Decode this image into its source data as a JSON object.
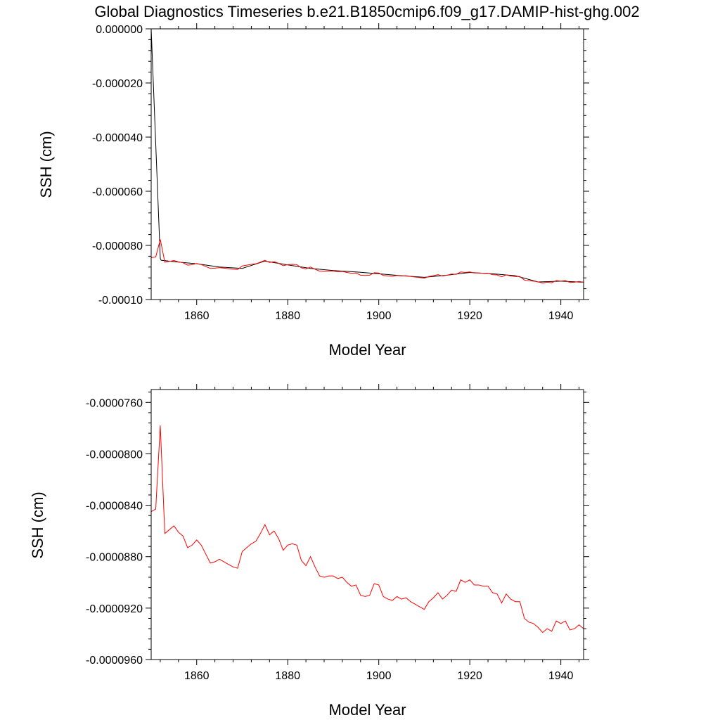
{
  "title": "Global Diagnostics Timeseries b.e21.B1850cmip6.f09_g17.DAMIP-hist-ghg.002",
  "colors": {
    "background": "#ffffff",
    "axes": "#000000",
    "raw_series": "#000000",
    "annual_series": "#ff0000"
  },
  "chart_data": [
    {
      "type": "line",
      "xlabel": "Model Year",
      "ylabel": "SSH (cm)",
      "xlim": [
        1850,
        1945
      ],
      "ylim": [
        -0.0001,
        0.0
      ],
      "xticks": [
        1860,
        1880,
        1900,
        1920,
        1940
      ],
      "xtick_labels": [
        "1860",
        "1880",
        "1900",
        "1920",
        "1940"
      ],
      "yticks": [
        0.0,
        -2e-05,
        -4e-05,
        -6e-05,
        -8e-05,
        -0.0001
      ],
      "ytick_labels": [
        "0.000000",
        "-0.000020",
        "-0.000040",
        "-0.000060",
        "-0.000080",
        "-0.00010"
      ],
      "grid": false,
      "series": [
        {
          "color": "#000000",
          "x": [
            1850.0,
            1852.0,
            1852.2,
            1855,
            1860,
            1865,
            1870,
            1875,
            1880,
            1885,
            1890,
            1895,
            1900,
            1905,
            1910,
            1915,
            1920,
            1925,
            1930,
            1935,
            1940,
            1945
          ],
          "values": [
            -0.0,
            -8.48e-05,
            -8.55e-05,
            -8.6e-05,
            -8.68e-05,
            -8.8e-05,
            -8.85e-05,
            -8.58e-05,
            -8.72e-05,
            -8.85e-05,
            -8.93e-05,
            -8.98e-05,
            -9.05e-05,
            -9.12e-05,
            -9.18e-05,
            -9.1e-05,
            -9e-05,
            -9.05e-05,
            -9.12e-05,
            -9.35e-05,
            -9.32e-05,
            -9.36e-05
          ]
        },
        {
          "color": "#ff0000",
          "x": [
            1850,
            1851,
            1852,
            1853,
            1854,
            1855,
            1856,
            1857,
            1858,
            1859,
            1860,
            1861,
            1862,
            1863,
            1864,
            1865,
            1866,
            1867,
            1868,
            1869,
            1870,
            1871,
            1872,
            1873,
            1874,
            1875,
            1876,
            1877,
            1878,
            1879,
            1880,
            1881,
            1882,
            1883,
            1884,
            1885,
            1886,
            1887,
            1888,
            1889,
            1890,
            1891,
            1892,
            1893,
            1894,
            1895,
            1896,
            1897,
            1898,
            1899,
            1900,
            1901,
            1902,
            1903,
            1904,
            1905,
            1906,
            1907,
            1908,
            1909,
            1910,
            1911,
            1912,
            1913,
            1914,
            1915,
            1916,
            1917,
            1918,
            1919,
            1920,
            1921,
            1922,
            1923,
            1924,
            1925,
            1926,
            1927,
            1928,
            1929,
            1930,
            1931,
            1932,
            1933,
            1934,
            1935,
            1936,
            1937,
            1938,
            1939,
            1940,
            1941,
            1942,
            1943,
            1944,
            1945
          ],
          "values": [
            -8.45e-05,
            -8.43e-05,
            -7.78e-05,
            -8.62e-05,
            -8.59e-05,
            -8.56e-05,
            -8.61e-05,
            -8.64e-05,
            -8.73e-05,
            -8.71e-05,
            -8.67e-05,
            -8.71e-05,
            -8.78e-05,
            -8.85e-05,
            -8.84e-05,
            -8.82e-05,
            -8.84e-05,
            -8.86e-05,
            -8.88e-05,
            -8.89e-05,
            -8.76e-05,
            -8.73e-05,
            -8.7e-05,
            -8.68e-05,
            -8.62e-05,
            -8.55e-05,
            -8.63e-05,
            -8.6e-05,
            -8.66e-05,
            -8.75e-05,
            -8.71e-05,
            -8.7e-05,
            -8.71e-05,
            -8.83e-05,
            -8.87e-05,
            -8.8e-05,
            -8.88e-05,
            -8.95e-05,
            -8.96e-05,
            -8.95e-05,
            -8.95e-05,
            -8.97e-05,
            -8.96e-05,
            -9e-05,
            -9.03e-05,
            -9.02e-05,
            -9.1e-05,
            -9.11e-05,
            -9.1e-05,
            -9.01e-05,
            -9.02e-05,
            -9.11e-05,
            -9.13e-05,
            -9.14e-05,
            -9.11e-05,
            -9.13e-05,
            -9.12e-05,
            -9.15e-05,
            -9.17e-05,
            -9.19e-05,
            -9.21e-05,
            -9.15e-05,
            -9.12e-05,
            -9.08e-05,
            -9.13e-05,
            -9.1e-05,
            -9.06e-05,
            -9.07e-05,
            -8.98e-05,
            -9e-05,
            -8.98e-05,
            -9.02e-05,
            -9.02e-05,
            -9.03e-05,
            -9.03e-05,
            -9.08e-05,
            -9.09e-05,
            -9.16e-05,
            -9.09e-05,
            -9.13e-05,
            -9.15e-05,
            -9.15e-05,
            -9.28e-05,
            -9.31e-05,
            -9.32e-05,
            -9.35e-05,
            -9.39e-05,
            -9.36e-05,
            -9.38e-05,
            -9.3e-05,
            -9.32e-05,
            -9.3e-05,
            -9.37e-05,
            -9.36e-05,
            -9.33e-05,
            -9.36e-05
          ]
        }
      ]
    },
    {
      "type": "line",
      "xlabel": "Model Year",
      "ylabel": "SSH (cm)",
      "xlim": [
        1850,
        1945
      ],
      "ylim": [
        -9.6e-05,
        -7.5e-05
      ],
      "xticks": [
        1860,
        1880,
        1900,
        1920,
        1940
      ],
      "xtick_labels": [
        "1860",
        "1880",
        "1900",
        "1920",
        "1940"
      ],
      "yticks": [
        -7.6e-05,
        -8e-05,
        -8.4e-05,
        -8.8e-05,
        -9.2e-05,
        -9.6e-05
      ],
      "ytick_labels": [
        "-0.0000760",
        "-0.0000800",
        "-0.0000840",
        "-0.0000880",
        "-0.0000920",
        "-0.0000960"
      ],
      "grid": false,
      "series": [
        {
          "color": "#ff0000",
          "x": [
            1850,
            1851,
            1852,
            1853,
            1854,
            1855,
            1856,
            1857,
            1858,
            1859,
            1860,
            1861,
            1862,
            1863,
            1864,
            1865,
            1866,
            1867,
            1868,
            1869,
            1870,
            1871,
            1872,
            1873,
            1874,
            1875,
            1876,
            1877,
            1878,
            1879,
            1880,
            1881,
            1882,
            1883,
            1884,
            1885,
            1886,
            1887,
            1888,
            1889,
            1890,
            1891,
            1892,
            1893,
            1894,
            1895,
            1896,
            1897,
            1898,
            1899,
            1900,
            1901,
            1902,
            1903,
            1904,
            1905,
            1906,
            1907,
            1908,
            1909,
            1910,
            1911,
            1912,
            1913,
            1914,
            1915,
            1916,
            1917,
            1918,
            1919,
            1920,
            1921,
            1922,
            1923,
            1924,
            1925,
            1926,
            1927,
            1928,
            1929,
            1930,
            1931,
            1932,
            1933,
            1934,
            1935,
            1936,
            1937,
            1938,
            1939,
            1940,
            1941,
            1942,
            1943,
            1944,
            1945
          ],
          "values": [
            -8.45e-05,
            -8.43e-05,
            -7.78e-05,
            -8.62e-05,
            -8.59e-05,
            -8.56e-05,
            -8.61e-05,
            -8.64e-05,
            -8.73e-05,
            -8.71e-05,
            -8.67e-05,
            -8.71e-05,
            -8.78e-05,
            -8.85e-05,
            -8.84e-05,
            -8.82e-05,
            -8.84e-05,
            -8.86e-05,
            -8.88e-05,
            -8.89e-05,
            -8.76e-05,
            -8.73e-05,
            -8.7e-05,
            -8.68e-05,
            -8.62e-05,
            -8.55e-05,
            -8.63e-05,
            -8.6e-05,
            -8.66e-05,
            -8.75e-05,
            -8.71e-05,
            -8.7e-05,
            -8.71e-05,
            -8.83e-05,
            -8.87e-05,
            -8.8e-05,
            -8.88e-05,
            -8.95e-05,
            -8.96e-05,
            -8.95e-05,
            -8.95e-05,
            -8.97e-05,
            -8.96e-05,
            -9e-05,
            -9.03e-05,
            -9.02e-05,
            -9.1e-05,
            -9.11e-05,
            -9.1e-05,
            -9.01e-05,
            -9.02e-05,
            -9.11e-05,
            -9.13e-05,
            -9.14e-05,
            -9.11e-05,
            -9.13e-05,
            -9.12e-05,
            -9.15e-05,
            -9.17e-05,
            -9.19e-05,
            -9.21e-05,
            -9.15e-05,
            -9.12e-05,
            -9.08e-05,
            -9.13e-05,
            -9.1e-05,
            -9.06e-05,
            -9.07e-05,
            -8.98e-05,
            -9e-05,
            -8.98e-05,
            -9.02e-05,
            -9.02e-05,
            -9.03e-05,
            -9.03e-05,
            -9.08e-05,
            -9.09e-05,
            -9.16e-05,
            -9.09e-05,
            -9.13e-05,
            -9.15e-05,
            -9.15e-05,
            -9.28e-05,
            -9.31e-05,
            -9.32e-05,
            -9.35e-05,
            -9.39e-05,
            -9.36e-05,
            -9.38e-05,
            -9.3e-05,
            -9.32e-05,
            -9.3e-05,
            -9.37e-05,
            -9.36e-05,
            -9.33e-05,
            -9.36e-05
          ]
        }
      ]
    }
  ]
}
